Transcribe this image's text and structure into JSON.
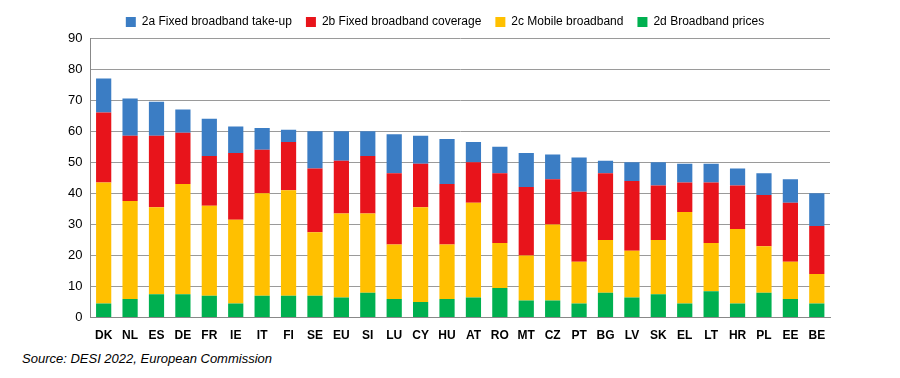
{
  "chart_data": {
    "type": "bar",
    "stacked": true,
    "grid": true,
    "legend": "top",
    "source": "Source: DESI 2022, European Commission",
    "categories": [
      "DK",
      "NL",
      "ES",
      "DE",
      "FR",
      "IE",
      "IT",
      "FI",
      "SE",
      "EU",
      "SI",
      "LU",
      "CY",
      "HU",
      "AT",
      "RO",
      "MT",
      "CZ",
      "PT",
      "BG",
      "LV",
      "SK",
      "EL",
      "LT",
      "HR",
      "PL",
      "EE",
      "BE"
    ],
    "ylim": [
      0,
      90
    ],
    "yticks": [
      0,
      10,
      20,
      30,
      40,
      50,
      60,
      70,
      80,
      90
    ],
    "series": [
      {
        "name": "2a Fixed broadband take-up",
        "color": "#3b7dc4",
        "values": [
          11,
          12,
          11,
          7.5,
          12,
          8.5,
          7,
          4,
          12,
          9.5,
          8,
          12.5,
          9,
          14.5,
          6.5,
          8.5,
          11,
          8,
          11,
          4,
          6,
          7.5,
          6,
          6,
          5.5,
          7,
          7.5,
          10.5
        ]
      },
      {
        "name": "2b Fixed broadband coverage",
        "color": "#e8141b",
        "values": [
          22.5,
          21,
          23,
          16.5,
          16,
          21.5,
          14,
          15.5,
          20.5,
          17,
          18.5,
          23,
          14,
          19.5,
          13,
          22.5,
          22,
          14.5,
          22.5,
          21.5,
          22.5,
          17.5,
          9.5,
          19.5,
          14,
          16.5,
          19,
          15.5
        ]
      },
      {
        "name": "2c Mobile broadband",
        "color": "#ffc000",
        "values": [
          39,
          31.5,
          28,
          35.5,
          29,
          27,
          33,
          34,
          20.5,
          27,
          25.5,
          17.5,
          30.5,
          17.5,
          30.5,
          14.5,
          14.5,
          24.5,
          13.5,
          17,
          15,
          17.5,
          29.5,
          15.5,
          24,
          15,
          12,
          9.5
        ]
      },
      {
        "name": "2d Broadband prices",
        "color": "#00b050",
        "values": [
          4.5,
          6,
          7.5,
          7.5,
          7,
          4.5,
          7,
          7,
          7,
          6.5,
          8,
          6,
          5,
          6,
          6.5,
          9.5,
          5.5,
          5.5,
          4.5,
          8,
          6.5,
          7.5,
          4.5,
          8.5,
          4.5,
          8,
          6,
          4.5
        ]
      }
    ]
  }
}
